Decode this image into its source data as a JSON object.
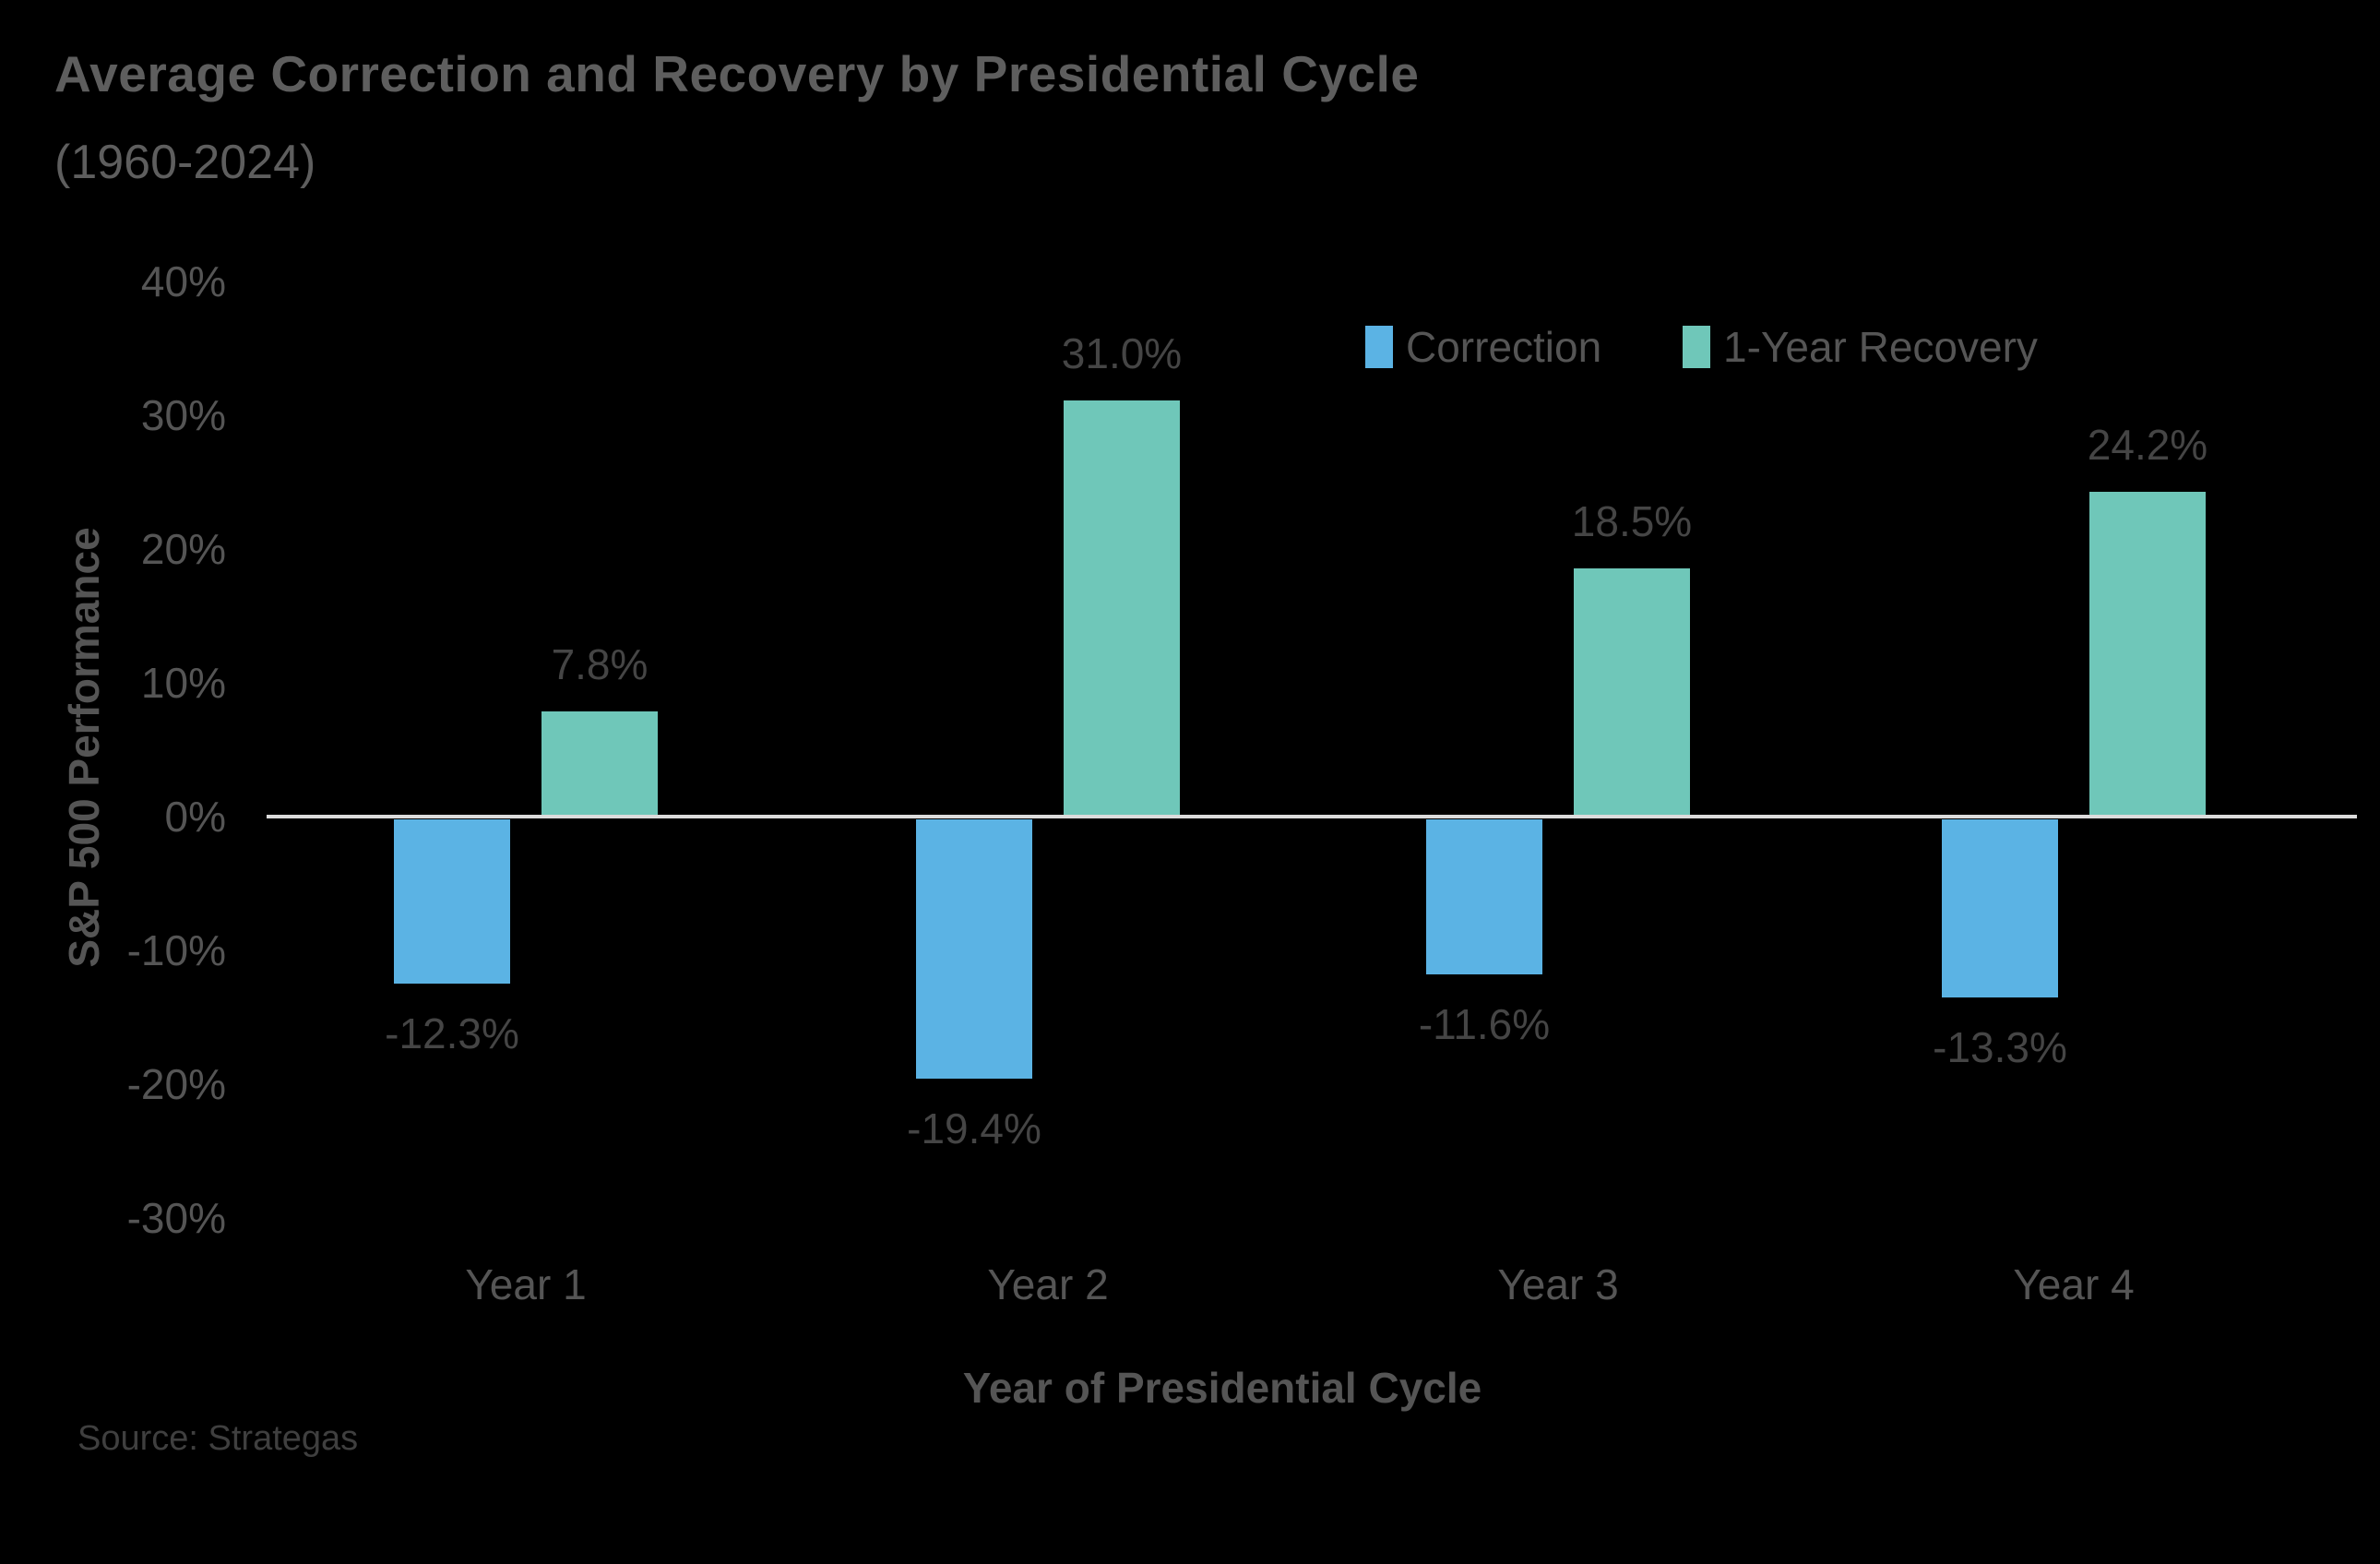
{
  "header": {
    "title": "Average Correction and Recovery by Presidential Cycle",
    "subtitle": "(1960-2024)"
  },
  "chart_data": {
    "type": "bar",
    "title": "Average Correction and Recovery by Presidential Cycle",
    "subtitle": "(1960-2024)",
    "categories": [
      "Year 1",
      "Year 2",
      "Year 3",
      "Year 4"
    ],
    "series": [
      {
        "name": "Correction",
        "color": "#5bb3e4",
        "values": [
          -12.3,
          -19.4,
          -11.6,
          -13.3
        ],
        "labels": [
          "-12.3%",
          "-19.4%",
          "-11.6%",
          "-13.3%"
        ]
      },
      {
        "name": "1-Year Recovery",
        "color": "#6fc7b9",
        "values": [
          7.8,
          31.0,
          18.5,
          24.2
        ],
        "labels": [
          "7.8%",
          "31.0%",
          "18.5%",
          "24.2%"
        ]
      }
    ],
    "xlabel": "Year of Presidential Cycle",
    "ylabel": "S&P 500 Performance",
    "ylim": [
      -30,
      40
    ],
    "yticks": [
      {
        "value": 40,
        "label": "40%"
      },
      {
        "value": 30,
        "label": "30%"
      },
      {
        "value": 20,
        "label": "20%"
      },
      {
        "value": 10,
        "label": "10%"
      },
      {
        "value": 0,
        "label": "0%"
      },
      {
        "value": -10,
        "label": "-10%"
      },
      {
        "value": -20,
        "label": "-20%"
      },
      {
        "value": -30,
        "label": "-30%"
      }
    ],
    "grid": false,
    "legend_position": "top-right"
  },
  "source": {
    "text": "Source: Strategas"
  },
  "colors": {
    "background": "#000000",
    "correction": "#5bb3e4",
    "recovery": "#6fc7b9",
    "axis_line": "#dcdcdc",
    "title_text": "#5e5e5e",
    "label_text": "#555555",
    "value_text": "#454545",
    "source_text": "#3f3f3f"
  }
}
